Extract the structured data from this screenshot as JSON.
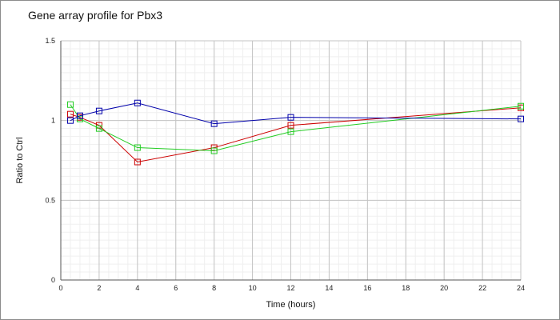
{
  "chart_data": {
    "type": "line",
    "title": "Gene array profile for Pbx3",
    "xlabel": "Time (hours)",
    "ylabel": "Ratio to Ctrl",
    "xlim": [
      0,
      24
    ],
    "ylim": [
      0,
      1.5
    ],
    "xticks": [
      0,
      2,
      4,
      6,
      8,
      10,
      12,
      14,
      16,
      18,
      20,
      22,
      24
    ],
    "yticks": [
      0,
      0.5,
      1,
      1.5
    ],
    "xtick_labels": [
      "0",
      "2",
      "4",
      "6",
      "8",
      "10",
      "12",
      "14",
      "16",
      "18",
      "20",
      "22",
      "24"
    ],
    "ytick_labels": [
      "0",
      "0.5",
      "1",
      "1.5"
    ],
    "grid": true,
    "legend": "none",
    "series": [
      {
        "color": "#cc0000",
        "x": [
          0.5,
          1,
          2,
          4,
          8,
          12,
          24
        ],
        "y": [
          1.04,
          1.02,
          0.97,
          0.74,
          0.83,
          0.97,
          1.08
        ]
      },
      {
        "color": "#22cc22",
        "x": [
          0.5,
          1,
          2,
          4,
          8,
          12,
          24
        ],
        "y": [
          1.1,
          1.01,
          0.95,
          0.83,
          0.81,
          0.93,
          1.09
        ]
      },
      {
        "color": "#0000aa",
        "x": [
          0.5,
          1,
          2,
          4,
          8,
          12,
          24
        ],
        "y": [
          1.0,
          1.03,
          1.06,
          1.11,
          0.98,
          1.02,
          1.01
        ]
      }
    ]
  }
}
